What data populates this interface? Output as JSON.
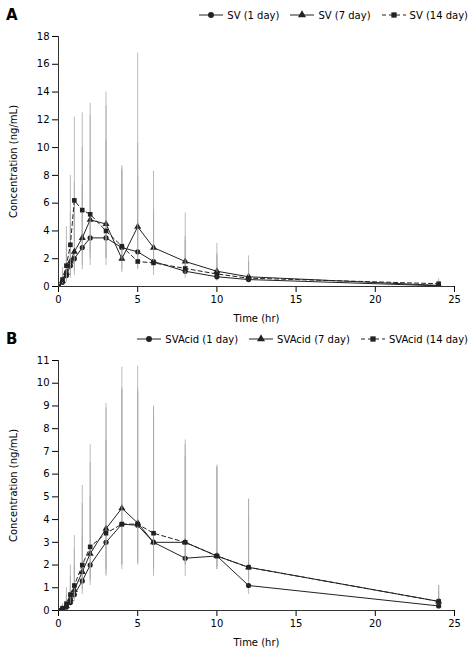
{
  "chart_data": [
    {
      "type": "line",
      "title": "A",
      "x_label": "Time (hr)",
      "y_label": "Concentration (ng/mL)",
      "xlim": [
        0,
        25
      ],
      "ylim": [
        0,
        18
      ],
      "xticks": [
        0,
        5,
        10,
        15,
        20,
        25
      ],
      "yticks": [
        0,
        2,
        4,
        6,
        8,
        10,
        12,
        14,
        16,
        18
      ],
      "legend": "upper right",
      "error_color": "#aaaaaa",
      "x": [
        0,
        0.25,
        0.5,
        0.75,
        1.0,
        1.5,
        2.0,
        3.0,
        4.0,
        5.0,
        6.0,
        8.0,
        10.0,
        12.0,
        24.0
      ],
      "series": [
        {
          "name": "SV (1 day)",
          "color": "#222222",
          "marker": "circle",
          "line_style": "solid",
          "values": [
            0,
            0.3,
            0.8,
            1.5,
            2.0,
            2.8,
            3.5,
            3.5,
            2.8,
            2.5,
            1.8,
            1.1,
            0.7,
            0.5,
            0.05
          ],
          "err_lo": [
            0,
            0.2,
            0.5,
            0.9,
            1.2,
            1.6,
            2.0,
            2.0,
            1.6,
            1.3,
            1.0,
            0.5,
            0.3,
            0.2,
            0.02
          ],
          "err_hi": [
            0,
            0.5,
            1.5,
            2.8,
            3.8,
            4.5,
            5.5,
            7.0,
            5.5,
            5.5,
            3.5,
            2.5,
            1.5,
            1.2,
            0.2
          ]
        },
        {
          "name": "SV (7 day)",
          "color": "#222222",
          "marker": "triangle",
          "line_style": "solid",
          "values": [
            0,
            0.4,
            1.0,
            1.8,
            2.5,
            3.5,
            4.8,
            4.5,
            2.0,
            4.3,
            2.8,
            1.8,
            1.1,
            0.7,
            0.08
          ],
          "err_lo": [
            0,
            0.2,
            0.6,
            1.0,
            1.4,
            2.0,
            2.8,
            2.5,
            1.0,
            1.5,
            1.2,
            0.7,
            0.4,
            0.3,
            0.03
          ],
          "err_hi": [
            0,
            0.7,
            2.0,
            3.5,
            5.0,
            6.5,
            7.5,
            8.5,
            6.5,
            12.5,
            5.5,
            3.5,
            2.0,
            1.5,
            0.25
          ]
        },
        {
          "name": "SV (14 day)",
          "color": "#222222",
          "marker": "square",
          "line_style": "dashed",
          "values": [
            0,
            0.5,
            1.5,
            3.0,
            6.2,
            5.5,
            5.2,
            4.0,
            2.9,
            1.8,
            1.7,
            1.3,
            0.9,
            0.6,
            0.2
          ],
          "err_lo": [
            0,
            0.3,
            0.8,
            1.5,
            3.0,
            2.5,
            2.8,
            2.0,
            1.0,
            0.5,
            0.5,
            0.4,
            0.2,
            0.15,
            0.05
          ],
          "err_hi": [
            0,
            0.9,
            2.8,
            5.0,
            6.0,
            7.0,
            8.0,
            10.0,
            5.8,
            8.5,
            3.8,
            2.0,
            1.5,
            1.2,
            0.35
          ]
        }
      ]
    },
    {
      "type": "line",
      "title": "B",
      "x_label": "Time (hr)",
      "y_label": "Concentration (ng/mL)",
      "xlim": [
        0,
        25
      ],
      "ylim": [
        0,
        11
      ],
      "xticks": [
        0,
        5,
        10,
        15,
        20,
        25
      ],
      "yticks": [
        0,
        1,
        2,
        3,
        4,
        5,
        6,
        7,
        8,
        9,
        10,
        11
      ],
      "legend": "upper right",
      "error_color": "#aaaaaa",
      "x": [
        0,
        0.25,
        0.5,
        0.75,
        1.0,
        1.5,
        2.0,
        3.0,
        4.0,
        5.0,
        6.0,
        8.0,
        10.0,
        12.0,
        24.0
      ],
      "series": [
        {
          "name": "SVAcid (1 day)",
          "color": "#222222",
          "marker": "circle",
          "line_style": "solid",
          "values": [
            0,
            0.05,
            0.15,
            0.35,
            0.7,
            1.3,
            2.0,
            3.0,
            3.8,
            3.75,
            3.0,
            2.3,
            2.4,
            1.1,
            0.2
          ],
          "err_lo": [
            0,
            0.02,
            0.08,
            0.15,
            0.3,
            0.6,
            0.9,
            1.5,
            1.8,
            1.5,
            1.2,
            0.8,
            0.5,
            0.4,
            0.07
          ],
          "err_hi": [
            0,
            0.1,
            0.3,
            0.7,
            1.3,
            2.0,
            3.0,
            4.5,
            6.0,
            6.0,
            5.5,
            4.5,
            4.0,
            3.0,
            0.6
          ]
        },
        {
          "name": "SVAcid (7 day)",
          "color": "#222222",
          "marker": "triangle",
          "line_style": "solid",
          "values": [
            0,
            0.08,
            0.2,
            0.5,
            0.9,
            1.7,
            2.5,
            3.6,
            4.5,
            3.85,
            3.0,
            3.0,
            2.4,
            1.9,
            0.4
          ],
          "err_lo": [
            0,
            0.03,
            0.1,
            0.2,
            0.4,
            0.8,
            1.2,
            1.8,
            2.5,
            1.8,
            1.5,
            1.0,
            0.6,
            0.6,
            0.1
          ],
          "err_hi": [
            0,
            0.15,
            0.5,
            1.0,
            1.8,
            3.0,
            4.0,
            5.5,
            6.2,
            6.9,
            6.0,
            4.5,
            3.9,
            3.0,
            0.7
          ]
        },
        {
          "name": "SVAcid (14 day)",
          "color": "#222222",
          "marker": "square",
          "line_style": "dashed",
          "values": [
            0,
            0.1,
            0.3,
            0.7,
            1.1,
            2.0,
            2.8,
            3.4,
            3.8,
            3.8,
            3.4,
            3.0,
            2.4,
            1.9,
            0.4
          ],
          "err_lo": [
            0,
            0.03,
            0.1,
            0.3,
            0.5,
            0.9,
            1.4,
            1.8,
            2.0,
            1.8,
            1.5,
            1.0,
            0.6,
            0.6,
            0.1
          ],
          "err_hi": [
            0,
            0.2,
            0.7,
            1.3,
            2.2,
            3.5,
            4.5,
            5.5,
            5.9,
            5.8,
            5.5,
            4.3,
            3.9,
            3.0,
            0.7
          ]
        }
      ]
    }
  ]
}
